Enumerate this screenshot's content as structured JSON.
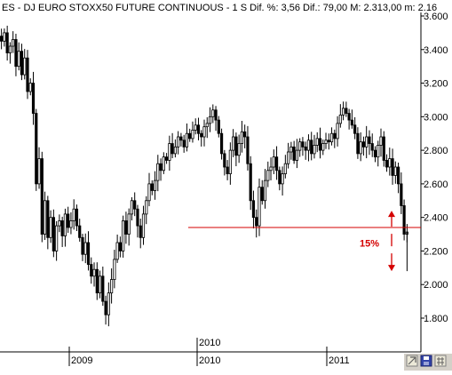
{
  "header": {
    "title": "ES - DJ EURO STOXX50 FUTURE CONTINUOUS - 1 S  Dif. %: 3,56  Dif.: 79,00  M: 2.313,00  m: 2.16"
  },
  "colors": {
    "background": "#ffffff",
    "candles": "#000000",
    "support_line": "#d40000",
    "arrow": "#d40000",
    "annotation": "#d40000",
    "axis_line": "#c8c8c8",
    "toolbar": "#d4d0c8"
  },
  "icons": [
    "zoom-in-icon",
    "save-icon",
    "grid-icon"
  ],
  "chart_data": {
    "type": "candlestick",
    "title": "ES - DJ EURO STOXX50 FUTURE CONTINUOUS - 1 S  Dif. %: 3,56  Dif.: 79,00  M: 2.313,00  m: 2.16",
    "ylim": [
      1700,
      3600
    ],
    "y_ticks": [
      "3.600",
      "3.400",
      "3.200",
      "3.000",
      "2.800",
      "2.600",
      "2.400",
      "2.200",
      "2.000",
      "1.800"
    ],
    "y_tick_values": [
      3600,
      3400,
      3200,
      3000,
      2800,
      2600,
      2400,
      2200,
      2000,
      1800
    ],
    "x_labels": [
      "2009",
      "2010",
      "2011"
    ],
    "x_label_top": "2010",
    "series": [
      {
        "name": "",
        "close": [
          3450,
          3500,
          3380,
          3420,
          3460,
          3300,
          3390,
          3250,
          3350,
          3150,
          3200,
          3020,
          2600,
          2750,
          2300,
          2500,
          2280,
          2400,
          2200,
          2350,
          2380,
          2290,
          2420,
          2340,
          2380,
          2450,
          2350,
          2280,
          2180,
          2250,
          2120,
          2050,
          2090,
          1950,
          2050,
          1900,
          1820,
          1950,
          2030,
          2150,
          2250,
          2200,
          2380,
          2300,
          2420,
          2500,
          2450,
          2350,
          2280,
          2420,
          2500,
          2600,
          2560,
          2620,
          2720,
          2680,
          2760,
          2740,
          2840,
          2780,
          2820,
          2880,
          2860,
          2820,
          2900,
          2870,
          2920,
          2950,
          2900,
          2880,
          2940,
          2960,
          3000,
          3040,
          2980,
          2900,
          2780,
          2700,
          2660,
          2800,
          2880,
          2770,
          2840,
          2910,
          2880,
          2720,
          2500,
          2400,
          2350,
          2580,
          2500,
          2620,
          2680,
          2700,
          2760,
          2680,
          2600,
          2660,
          2720,
          2790,
          2820,
          2740,
          2800,
          2850,
          2820,
          2800,
          2860,
          2780,
          2830,
          2870,
          2800,
          2840,
          2860,
          2850,
          2900,
          2870,
          2960,
          3010,
          3050,
          3020,
          2980,
          2950,
          2900,
          2780,
          2850,
          2820,
          2880,
          2840,
          2800,
          2760,
          2830,
          2880,
          2740,
          2700,
          2750,
          2650,
          2700,
          2600,
          2470,
          2300,
          2313
        ],
        "low_extreme": 2080
      }
    ],
    "annotations": {
      "support_level": 2340,
      "drop_percent_label": "15%",
      "arrow_top": 2440,
      "arrow_bottom": 2080
    },
    "grid": false
  }
}
